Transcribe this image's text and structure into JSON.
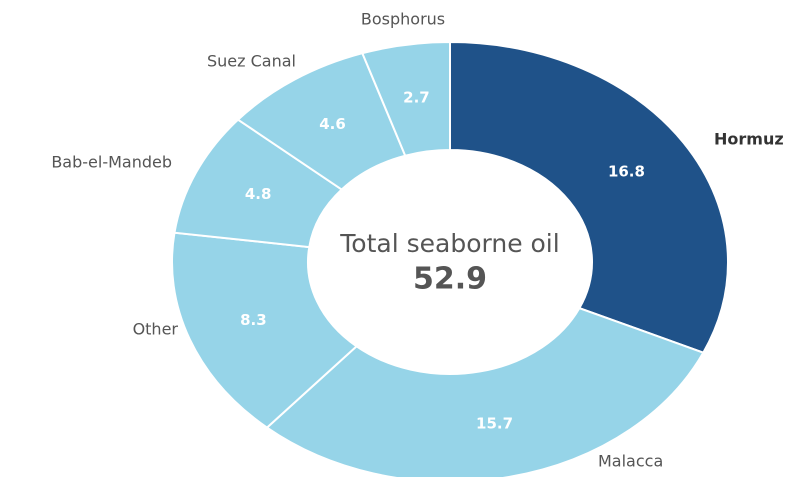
{
  "chart_data": {
    "type": "donut",
    "categories": [
      "Hormuz",
      "Malacca",
      "Other",
      "Bab-el-Mandeb",
      "Suez Canal",
      "Bosphorus"
    ],
    "values": [
      16.8,
      15.7,
      8.3,
      4.8,
      4.6,
      2.7
    ],
    "colors": [
      "#1f5289",
      "#96d4e8",
      "#96d4e8",
      "#96d4e8",
      "#96d4e8",
      "#96d4e8"
    ],
    "center_label": "Total seaborne oil",
    "total": 52.9
  }
}
